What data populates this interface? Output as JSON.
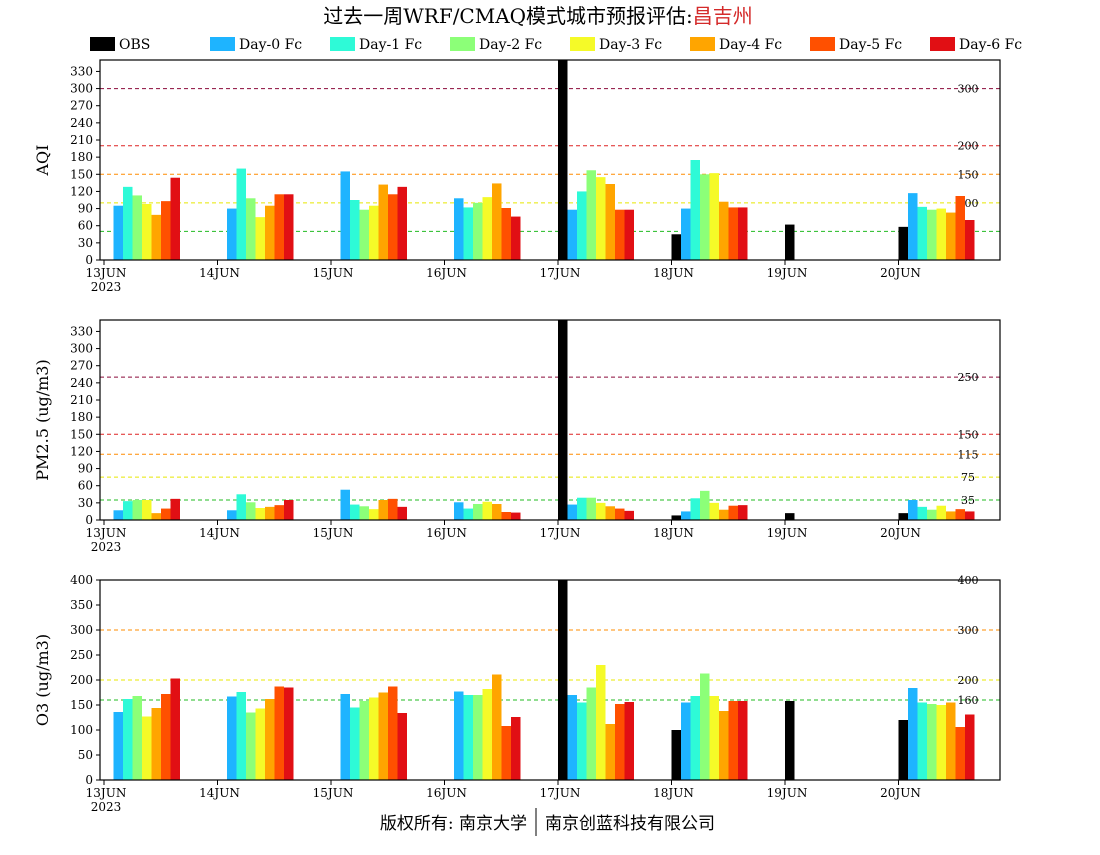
{
  "title_prefix": "过去一周WRF/CMAQ模式城市预报评估:",
  "title_city": "昌吉州",
  "title_city_color": "#d42a2a",
  "footer": {
    "left": "版权所有: 南京大学",
    "right": "南京创蓝科技有限公司"
  },
  "legend": [
    {
      "name": "OBS",
      "color": "#000000"
    },
    {
      "name": "Day-0 Fc",
      "color": "#1eb4ff"
    },
    {
      "name": "Day-1 Fc",
      "color": "#2efad7"
    },
    {
      "name": "Day-2 Fc",
      "color": "#8cff78"
    },
    {
      "name": "Day-3 Fc",
      "color": "#f5fa28"
    },
    {
      "name": "Day-4 Fc",
      "color": "#ffa500"
    },
    {
      "name": "Day-5 Fc",
      "color": "#ff5000"
    },
    {
      "name": "Day-6 Fc",
      "color": "#e10f14"
    }
  ],
  "chart_data": [
    {
      "type": "bar",
      "ylabel": "AQI",
      "ylim": [
        0,
        350
      ],
      "yticks": [
        0,
        30,
        60,
        90,
        120,
        150,
        180,
        210,
        240,
        270,
        300,
        330
      ],
      "categories": [
        "13JUN",
        "14JUN",
        "15JUN",
        "16JUN",
        "17JUN",
        "18JUN",
        "19JUN",
        "20JUN"
      ],
      "year_label": "2023",
      "thresholds": [
        {
          "value": 50,
          "label": "50",
          "color": "#22bb22"
        },
        {
          "value": 100,
          "label": "100",
          "color": "#e8e800"
        },
        {
          "value": 150,
          "label": "150",
          "color": "#ff8c00"
        },
        {
          "value": 200,
          "label": "200",
          "color": "#dd2222"
        },
        {
          "value": 300,
          "label": "300",
          "color": "#8b0a3a"
        }
      ],
      "series": [
        {
          "name": "OBS",
          "values": [
            null,
            null,
            null,
            null,
            350,
            45,
            62,
            58
          ]
        },
        {
          "name": "Day-0 Fc",
          "values": [
            95,
            90,
            155,
            108,
            88,
            90,
            null,
            117
          ]
        },
        {
          "name": "Day-1 Fc",
          "values": [
            128,
            160,
            105,
            92,
            120,
            175,
            null,
            93
          ]
        },
        {
          "name": "Day-2 Fc",
          "values": [
            113,
            108,
            88,
            100,
            157,
            150,
            null,
            88
          ]
        },
        {
          "name": "Day-3 Fc",
          "values": [
            98,
            75,
            95,
            110,
            145,
            152,
            null,
            90
          ]
        },
        {
          "name": "Day-4 Fc",
          "values": [
            79,
            95,
            132,
            134,
            133,
            102,
            null,
            83
          ]
        },
        {
          "name": "Day-5 Fc",
          "values": [
            103,
            115,
            115,
            91,
            88,
            92,
            null,
            112
          ]
        },
        {
          "name": "Day-6 Fc",
          "values": [
            144,
            115,
            128,
            76,
            88,
            92,
            null,
            70
          ]
        }
      ]
    },
    {
      "type": "bar",
      "ylabel": "PM2.5 (ug/m3)",
      "ylim": [
        0,
        350
      ],
      "yticks": [
        0,
        30,
        60,
        90,
        120,
        150,
        180,
        210,
        240,
        270,
        300,
        330
      ],
      "categories": [
        "13JUN",
        "14JUN",
        "15JUN",
        "16JUN",
        "17JUN",
        "18JUN",
        "19JUN",
        "20JUN"
      ],
      "year_label": "2023",
      "thresholds": [
        {
          "value": 35,
          "label": "35",
          "color": "#22bb22"
        },
        {
          "value": 75,
          "label": "75",
          "color": "#e8e800"
        },
        {
          "value": 115,
          "label": "115",
          "color": "#ff8c00"
        },
        {
          "value": 150,
          "label": "150",
          "color": "#dd2222"
        },
        {
          "value": 250,
          "label": "250",
          "color": "#8b0a3a"
        }
      ],
      "series": [
        {
          "name": "OBS",
          "values": [
            null,
            null,
            null,
            null,
            350,
            8,
            12,
            12
          ]
        },
        {
          "name": "Day-0 Fc",
          "values": [
            17,
            17,
            53,
            31,
            27,
            15,
            null,
            35
          ]
        },
        {
          "name": "Day-1 Fc",
          "values": [
            33,
            45,
            27,
            20,
            39,
            38,
            null,
            23
          ]
        },
        {
          "name": "Day-2 Fc",
          "values": [
            35,
            31,
            24,
            28,
            39,
            51,
            null,
            18
          ]
        },
        {
          "name": "Day-3 Fc",
          "values": [
            35,
            21,
            19,
            32,
            30,
            30,
            null,
            25
          ]
        },
        {
          "name": "Day-4 Fc",
          "values": [
            12,
            23,
            35,
            28,
            24,
            18,
            null,
            15
          ]
        },
        {
          "name": "Day-5 Fc",
          "values": [
            20,
            26,
            37,
            14,
            20,
            25,
            null,
            19
          ]
        },
        {
          "name": "Day-6 Fc",
          "values": [
            37,
            35,
            23,
            13,
            16,
            26,
            null,
            15
          ]
        }
      ]
    },
    {
      "type": "bar",
      "ylabel": "O3 (ug/m3)",
      "ylim": [
        0,
        400
      ],
      "yticks": [
        0,
        50,
        100,
        150,
        200,
        250,
        300,
        350,
        400
      ],
      "categories": [
        "13JUN",
        "14JUN",
        "15JUN",
        "16JUN",
        "17JUN",
        "18JUN",
        "19JUN",
        "20JUN"
      ],
      "year_label": "2023",
      "thresholds": [
        {
          "value": 160,
          "label": "160",
          "color": "#22bb22"
        },
        {
          "value": 200,
          "label": "200",
          "color": "#e8e800"
        },
        {
          "value": 300,
          "label": "300",
          "color": "#ff8c00"
        },
        {
          "value": 400,
          "label": "400",
          "color": "#dd2222"
        }
      ],
      "series": [
        {
          "name": "OBS",
          "values": [
            null,
            null,
            null,
            null,
            400,
            100,
            158,
            120
          ]
        },
        {
          "name": "Day-0 Fc",
          "values": [
            136,
            167,
            172,
            177,
            170,
            155,
            null,
            184
          ]
        },
        {
          "name": "Day-1 Fc",
          "values": [
            162,
            176,
            145,
            170,
            155,
            168,
            null,
            155
          ]
        },
        {
          "name": "Day-2 Fc",
          "values": [
            168,
            135,
            158,
            170,
            185,
            213,
            null,
            152
          ]
        },
        {
          "name": "Day-3 Fc",
          "values": [
            127,
            143,
            165,
            182,
            230,
            168,
            null,
            150
          ]
        },
        {
          "name": "Day-4 Fc",
          "values": [
            144,
            162,
            175,
            211,
            112,
            138,
            null,
            155
          ]
        },
        {
          "name": "Day-5 Fc",
          "values": [
            172,
            187,
            187,
            108,
            152,
            158,
            null,
            106
          ]
        },
        {
          "name": "Day-6 Fc",
          "values": [
            203,
            185,
            134,
            126,
            156,
            158,
            null,
            131
          ]
        }
      ]
    }
  ]
}
